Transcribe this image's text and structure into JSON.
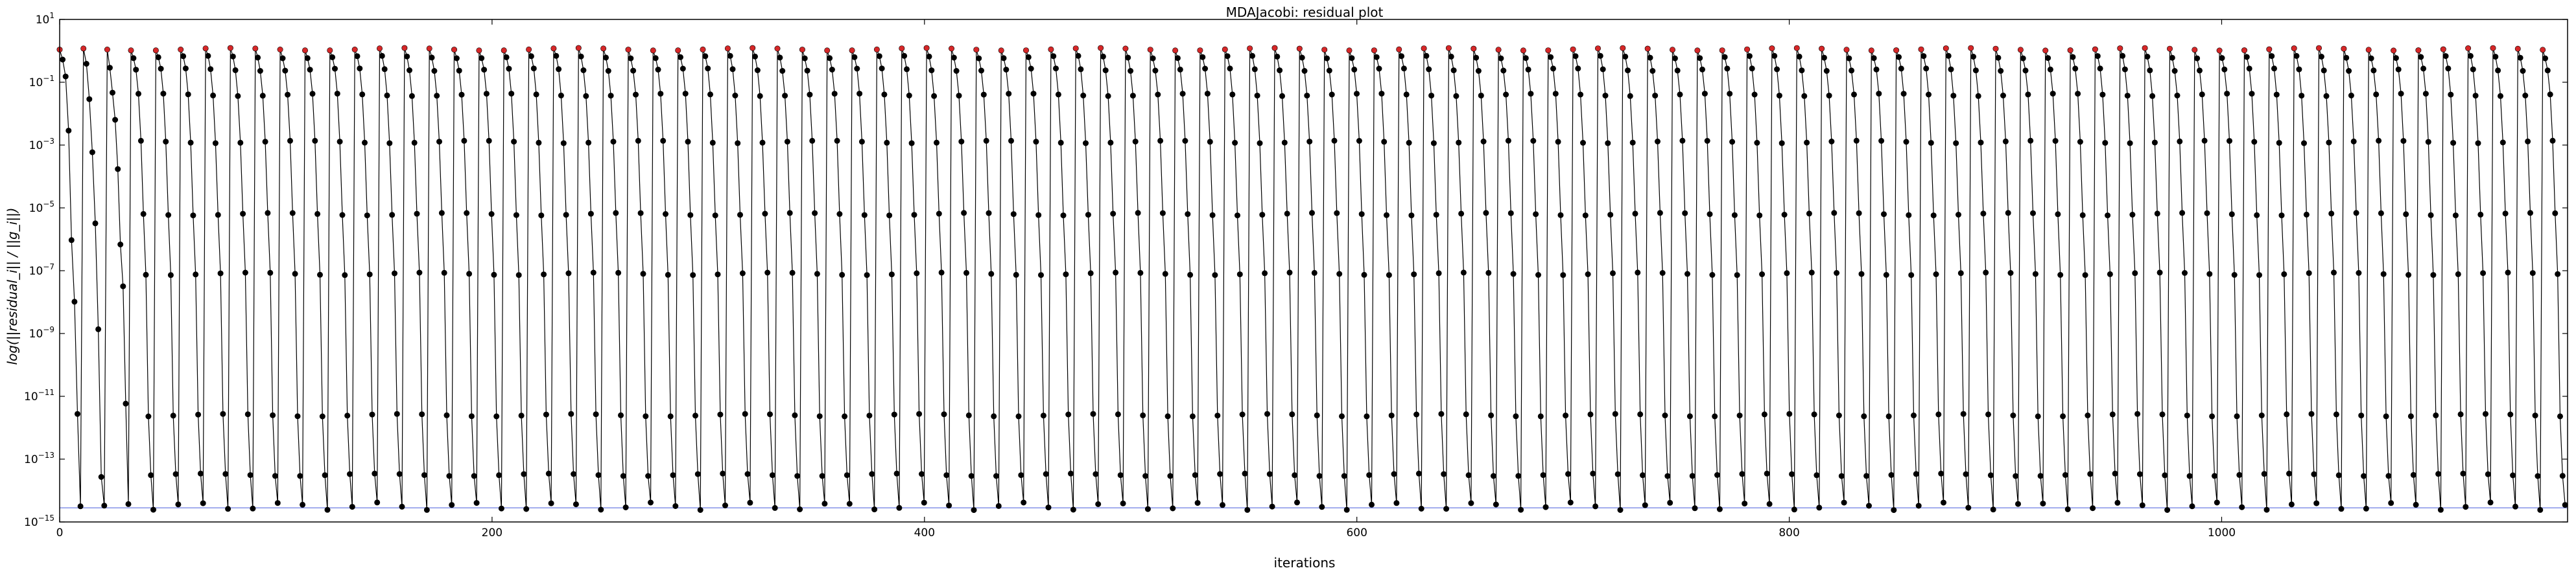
{
  "chart_data": {
    "type": "line",
    "title": "MDAJacobi: residual plot",
    "xlabel": "iterations",
    "ylabel": "log(||residual_i|| / ||g_i||)",
    "xlim": [
      0,
      1160
    ],
    "ylim_exponent": [
      -15,
      1
    ],
    "y_scale": "log",
    "x_ticks": [
      0,
      200,
      400,
      600,
      800,
      1000
    ],
    "y_tick_base": "10",
    "y_tick_exponents": [
      1,
      -1,
      -3,
      -5,
      -7,
      -9,
      -11,
      -13,
      -15
    ],
    "grid": false,
    "legend": "none",
    "cycle_length": 11.5,
    "cycle_count": 101,
    "cycle_profile_exponents": [
      0.05,
      -0.2,
      -0.6,
      -1.4,
      -2.9,
      -5.2,
      -7.1,
      -11.6,
      -13.5,
      -14.5
    ],
    "first_cycles_profile_exponents": [
      [
        0.0,
        -0.3,
        -0.8,
        -2.5,
        -6.0,
        -8.0,
        -11.6,
        -14.5
      ],
      [
        0.05,
        -0.4,
        -1.5,
        -3.2,
        -5.5,
        -8.9,
        -13.6,
        -14.6
      ],
      [
        0.05,
        -0.5,
        -1.3,
        -2.2,
        -3.8,
        -6.2,
        -7.5,
        -11.2,
        -14.4
      ]
    ],
    "reference_line_exponent": -14.55,
    "colors": {
      "series": "#000000",
      "markers": "#000000",
      "cycle_start_markers": "#d62728",
      "reference_line": "#5b6ee1"
    }
  }
}
